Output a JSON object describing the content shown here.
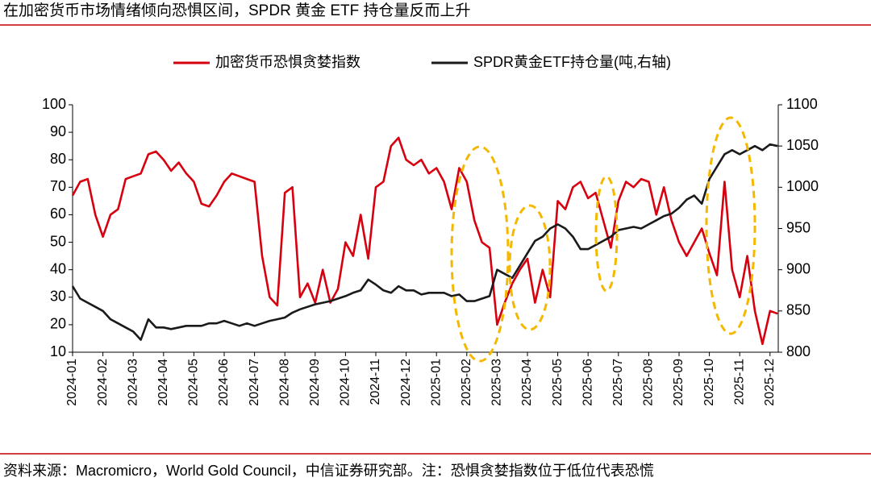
{
  "title": "在加密货币市场情绪倾向恐惧区间，SPDR 黄金 ETF 持仓量反而上升",
  "footer": "资料来源：Macromicro，World Gold Council，中信证券研究部。注：恐惧贪婪指数位于低位代表恐慌",
  "chart_data": {
    "type": "line",
    "categories": [
      "2024-01",
      null,
      null,
      null,
      "2024-02",
      null,
      null,
      null,
      "2024-03",
      null,
      null,
      null,
      "2024-04",
      null,
      null,
      null,
      "2024-05",
      null,
      null,
      null,
      "2024-06",
      null,
      null,
      null,
      "2024-07",
      null,
      null,
      null,
      "2024-08",
      null,
      null,
      null,
      "2024-09",
      null,
      null,
      null,
      "2024-10",
      null,
      null,
      null,
      "2024-11",
      null,
      null,
      null,
      "2024-12",
      null,
      null,
      null,
      "2025-01",
      null,
      null,
      null,
      "2025-02",
      null,
      null,
      null,
      "2025-03",
      null,
      null,
      null,
      "2025-04",
      null,
      null,
      null,
      "2025-05",
      null,
      null,
      null,
      "2025-06",
      null,
      null,
      null,
      "2025-07",
      null,
      null,
      null,
      "2025-08",
      null,
      null,
      null,
      "2025-09",
      null,
      null,
      null,
      "2025-10",
      null,
      null,
      null,
      "2025-11",
      null,
      null,
      null,
      "2025-12",
      null,
      null,
      null
    ],
    "series": [
      {
        "name": "加密货币恐惧贪婪指数",
        "color": "#d7000f",
        "axis": "y",
        "values": [
          67,
          72,
          73,
          60,
          52,
          60,
          62,
          73,
          74,
          75,
          82,
          83,
          80,
          76,
          79,
          75,
          72,
          64,
          63,
          67,
          72,
          75,
          74,
          73,
          72,
          45,
          30,
          27,
          68,
          70,
          30,
          35,
          28,
          40,
          28,
          33,
          50,
          45,
          60,
          44,
          70,
          72,
          85,
          88,
          80,
          78,
          80,
          75,
          77,
          72,
          62,
          77,
          72,
          58,
          50,
          48,
          20,
          28,
          35,
          40,
          44,
          28,
          40,
          30,
          65,
          62,
          70,
          72,
          66,
          68,
          58,
          48,
          65,
          72,
          70,
          73,
          72,
          60,
          70,
          58,
          50,
          45,
          50,
          55,
          46,
          38,
          72,
          40,
          30,
          45,
          25,
          13,
          25,
          24,
          null,
          null
        ]
      },
      {
        "name": "SPDR黄金ETF持仓量(吨,右轴)",
        "color": "#1a1a1a",
        "axis": "y2",
        "values": [
          880,
          865,
          860,
          855,
          850,
          840,
          835,
          830,
          825,
          815,
          840,
          830,
          830,
          828,
          830,
          832,
          832,
          832,
          835,
          835,
          838,
          835,
          832,
          835,
          832,
          835,
          838,
          840,
          842,
          848,
          852,
          855,
          858,
          860,
          862,
          865,
          868,
          872,
          875,
          888,
          882,
          875,
          872,
          880,
          875,
          875,
          870,
          872,
          872,
          872,
          868,
          870,
          862,
          862,
          865,
          868,
          900,
          895,
          890,
          905,
          920,
          935,
          940,
          950,
          955,
          950,
          940,
          925,
          925,
          930,
          935,
          940,
          948,
          950,
          952,
          950,
          955,
          960,
          965,
          968,
          975,
          985,
          990,
          980,
          1010,
          1025,
          1040,
          1045,
          1040,
          1045,
          1050,
          1045,
          1052,
          1050,
          null,
          null
        ]
      }
    ],
    "ylim": [
      10,
      100
    ],
    "yticks": [
      10,
      20,
      30,
      40,
      50,
      60,
      70,
      80,
      90,
      100
    ],
    "y2lim": [
      800,
      1100
    ],
    "y2ticks": [
      800,
      850,
      900,
      950,
      1000,
      1050,
      1100
    ],
    "legend": "top"
  }
}
